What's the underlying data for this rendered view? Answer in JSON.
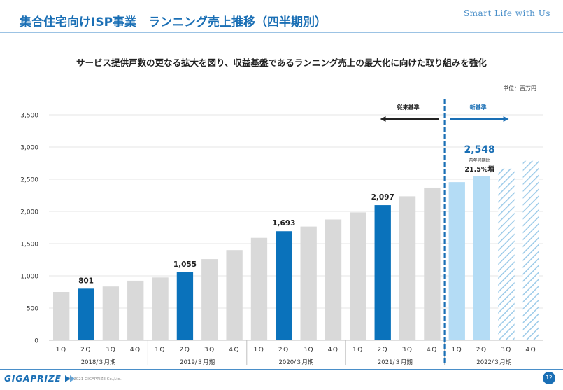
{
  "header": {
    "title": "集合住宅向けISP事業　ランニング売上推移（四半期別）",
    "brand": "Smart Life with Us"
  },
  "subtitle": "サービス提供戸数の更なる拡大を図り、収益基盤であるランニング売上の最大化に向けた取り組みを強化",
  "unit": "単位：百万円",
  "footer": {
    "logo": "GIGAPRIZE",
    "copyright": "© 2021 GIGAPRIZE Co.,Ltd.",
    "page": "12"
  },
  "colors": {
    "accent": "#1a6fb5",
    "highlight_bar": "#0a72bb",
    "normal_bar": "#d9d9d9",
    "new_bar": "#b4dcf5",
    "forecast_hatch": "#9dcbe9"
  },
  "chart_data": {
    "type": "bar",
    "ylim": [
      0,
      3500
    ],
    "yticks": [
      0,
      500,
      1000,
      1500,
      2000,
      2500,
      3000,
      3500
    ],
    "ytick_labels": [
      "0",
      "500",
      "1,000",
      "1,500",
      "2,000",
      "2,500",
      "3,000",
      "3,500"
    ],
    "categories": [
      "1Q",
      "2Q",
      "3Q",
      "4Q",
      "1Q",
      "2Q",
      "3Q",
      "4Q",
      "1Q",
      "2Q",
      "3Q",
      "4Q",
      "1Q",
      "2Q",
      "3Q",
      "4Q",
      "1Q",
      "2Q",
      "3Q",
      "4Q"
    ],
    "values": [
      750,
      801,
      835,
      925,
      975,
      1055,
      1260,
      1400,
      1590,
      1693,
      1765,
      1875,
      1985,
      2097,
      2235,
      2370,
      2455,
      2548,
      2665,
      2785
    ],
    "bar_styles": [
      "normal",
      "highlight",
      "normal",
      "normal",
      "normal",
      "highlight",
      "normal",
      "normal",
      "normal",
      "highlight",
      "normal",
      "normal",
      "normal",
      "highlight",
      "normal",
      "normal",
      "new",
      "new",
      "forecast",
      "forecast"
    ],
    "year_groups": [
      {
        "label": "2018/３月期",
        "start": 0,
        "end": 3
      },
      {
        "label": "2019/３月期",
        "start": 4,
        "end": 7
      },
      {
        "label": "2020/３月期",
        "start": 8,
        "end": 11
      },
      {
        "label": "2021/３月期",
        "start": 12,
        "end": 15
      },
      {
        "label": "2022/３月期",
        "start": 16,
        "end": 19
      }
    ],
    "data_labels": [
      {
        "index": 1,
        "text": "801"
      },
      {
        "index": 5,
        "text": "1,055"
      },
      {
        "index": 9,
        "text": "1,693"
      },
      {
        "index": 13,
        "text": "2,097"
      }
    ],
    "callout": {
      "index": 17,
      "value": "2,548",
      "note": "前年同期比",
      "growth": "21.5%増"
    },
    "standard_divider": {
      "old_label": "従来基準",
      "new_label": "新基準",
      "boundary_after_index": 15
    },
    "grid": true
  }
}
